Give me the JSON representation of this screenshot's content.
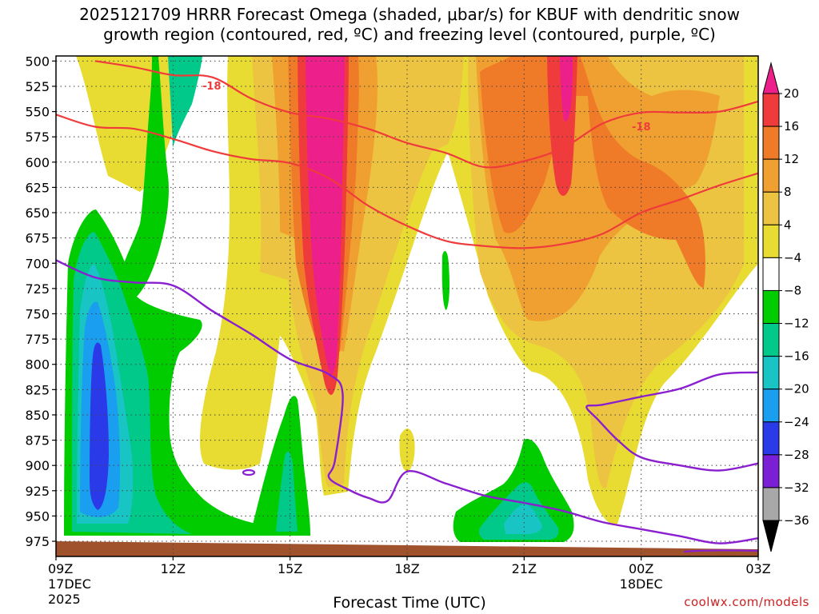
{
  "title_line1": "2025121709 HRRR Forecast Omega (shaded, μbar/s) for KBUF with dendritic snow",
  "title_line2": "growth region (contoured, red, ºC) and freezing level (contoured, purple, ºC)",
  "credit": "coolwx.com/models",
  "chart_data": {
    "type": "contour",
    "title": "2025121709 HRRR Forecast Omega (shaded, μbar/s) for KBUF with dendritic snow growth region (contoured, red, ºC) and freezing level (contoured, purple, ºC)",
    "xlabel": "Forecast Time (UTC)",
    "ylabel": "",
    "x_range_hours": [
      0,
      18
    ],
    "y_range_hPa": [
      990,
      495
    ],
    "y_ticks": [
      500,
      525,
      550,
      575,
      600,
      625,
      650,
      675,
      700,
      725,
      750,
      775,
      800,
      825,
      850,
      875,
      900,
      925,
      950,
      975
    ],
    "x_ticks": [
      {
        "h": 0,
        "l1": "09Z",
        "l2": "17DEC",
        "l3": "2025"
      },
      {
        "h": 3,
        "l1": "12Z",
        "l2": "",
        "l3": ""
      },
      {
        "h": 6,
        "l1": "15Z",
        "l2": "",
        "l3": ""
      },
      {
        "h": 9,
        "l1": "18Z",
        "l2": "",
        "l3": ""
      },
      {
        "h": 12,
        "l1": "21Z",
        "l2": "",
        "l3": ""
      },
      {
        "h": 15,
        "l1": "00Z",
        "l2": "18DEC",
        "l3": ""
      },
      {
        "h": 18,
        "l1": "03Z",
        "l2": "",
        "l3": ""
      }
    ],
    "grid": true,
    "colorbar": {
      "labels": [
        "20",
        "16",
        "12",
        "8",
        "4",
        "−4",
        "−8",
        "−12",
        "−16",
        "−20",
        "−24",
        "−28",
        "−32",
        "−36"
      ],
      "colors": [
        "#ed1f8a",
        "#ef3b3b",
        "#ef7a28",
        "#f0a030",
        "#ecc441",
        "#e8dc33",
        "#ffffff",
        "#00cc00",
        "#00c98a",
        "#19c4c4",
        "#1a9ef0",
        "#2a3ae8",
        "#7a1fd6",
        "#a41fc8",
        "#a8a8a8",
        "#000000"
      ]
    },
    "contour_labels": [
      "-18",
      "-18"
    ],
    "series": [
      {
        "name": "dendritic snow growth region",
        "color": "#ef3b3b"
      },
      {
        "name": "freezing level",
        "color": "#8a1fd0"
      }
    ],
    "dgz_upper_contour": [
      [
        1,
        500
      ],
      [
        2,
        506
      ],
      [
        3,
        514
      ],
      [
        4,
        516
      ],
      [
        5,
        537
      ],
      [
        6,
        551
      ],
      [
        7,
        557
      ],
      [
        8,
        567
      ],
      [
        9,
        581
      ],
      [
        10,
        591
      ],
      [
        11,
        605
      ],
      [
        12,
        599
      ],
      [
        13,
        586
      ],
      [
        14,
        562
      ],
      [
        15,
        551
      ],
      [
        16,
        551
      ],
      [
        17,
        550
      ],
      [
        18,
        540
      ]
    ],
    "dgz_lower_contour": [
      [
        0,
        553
      ],
      [
        1,
        565
      ],
      [
        2,
        567
      ],
      [
        3,
        577
      ],
      [
        4,
        589
      ],
      [
        5,
        597
      ],
      [
        6,
        601
      ],
      [
        7,
        616
      ],
      [
        8,
        643
      ],
      [
        9,
        663
      ],
      [
        10,
        678
      ],
      [
        11,
        683
      ],
      [
        12,
        685
      ],
      [
        13,
        681
      ],
      [
        14,
        671
      ],
      [
        15,
        650
      ],
      [
        16,
        637
      ],
      [
        17,
        623
      ],
      [
        18,
        611
      ]
    ],
    "freezing_level_contour": [
      [
        0,
        697
      ],
      [
        1,
        714
      ],
      [
        2,
        719
      ],
      [
        3,
        722
      ],
      [
        4,
        747
      ],
      [
        5,
        770
      ],
      [
        6,
        795
      ],
      [
        7,
        810
      ],
      [
        7.35,
        830
      ],
      [
        7.15,
        895
      ],
      [
        7.0,
        912
      ],
      [
        7.5,
        924
      ],
      [
        8,
        932
      ],
      [
        8.5,
        935
      ],
      [
        9,
        906
      ],
      [
        10,
        918
      ],
      [
        11,
        930
      ],
      [
        12,
        937
      ],
      [
        13,
        945
      ],
      [
        14,
        956
      ],
      [
        15,
        963
      ],
      [
        16,
        970
      ],
      [
        17,
        977
      ],
      [
        18,
        972
      ]
    ],
    "freezing_level_contour_2": [
      [
        18,
        808
      ],
      [
        17,
        810
      ],
      [
        16,
        824
      ],
      [
        15,
        832
      ],
      [
        14,
        840
      ],
      [
        13.6,
        842
      ],
      [
        13.9,
        855
      ],
      [
        14.4,
        875
      ],
      [
        15,
        892
      ],
      [
        16,
        900
      ],
      [
        17,
        905
      ],
      [
        18,
        898
      ]
    ]
  }
}
